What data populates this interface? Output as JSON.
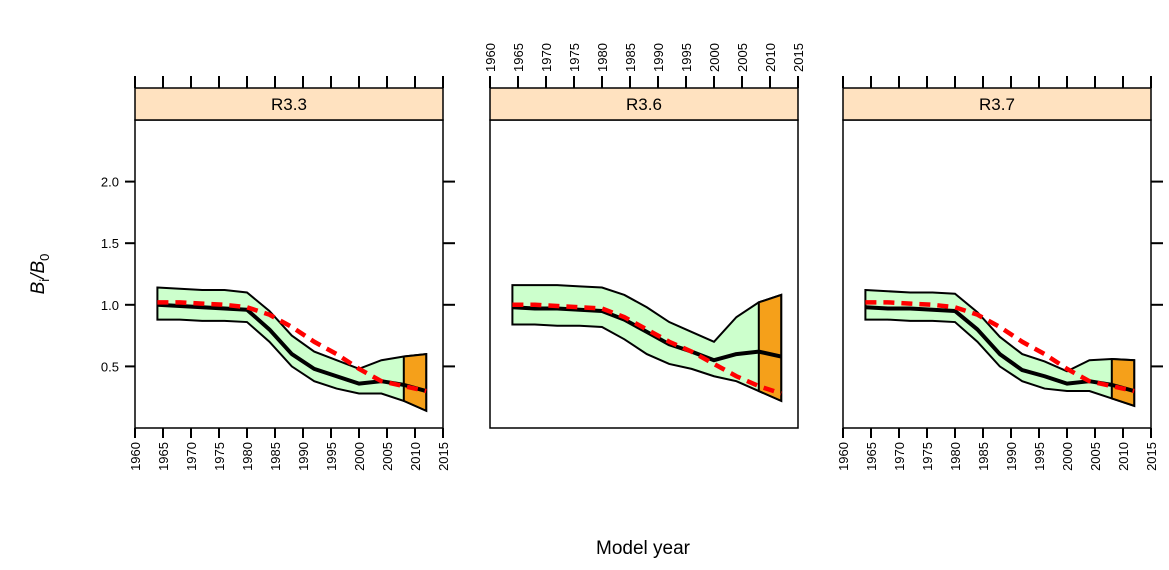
{
  "chart_data": [
    {
      "type": "line",
      "title": "R3.3",
      "x_axis_side": "bottom",
      "x": [
        1964,
        1968,
        1972,
        1976,
        1980,
        1984,
        1988,
        1992,
        1996,
        2000,
        2004,
        2008,
        2012
      ],
      "median": {
        "color": "#000000",
        "values": [
          1.0,
          0.99,
          0.98,
          0.97,
          0.96,
          0.8,
          0.6,
          0.48,
          0.42,
          0.36,
          0.38,
          0.35,
          0.3
        ]
      },
      "interval": {
        "color": "#ccffcc",
        "upper": [
          1.14,
          1.13,
          1.12,
          1.12,
          1.1,
          0.95,
          0.75,
          0.62,
          0.55,
          0.48,
          0.55,
          0.58,
          0.6
        ],
        "lower": [
          0.88,
          0.88,
          0.87,
          0.87,
          0.86,
          0.7,
          0.5,
          0.38,
          0.32,
          0.28,
          0.28,
          0.22,
          0.14
        ]
      },
      "reference": {
        "color": "#ff0000",
        "values": [
          1.02,
          1.02,
          1.01,
          1.0,
          0.98,
          0.92,
          0.82,
          0.7,
          0.6,
          0.48,
          0.38,
          0.34,
          0.3
        ]
      },
      "highlight_from": 2008,
      "highlight_color": "#f5a01a",
      "xlim": [
        1960,
        2015
      ],
      "ylim": [
        0,
        2.5
      ],
      "xticks": [
        1960,
        1965,
        1970,
        1975,
        1980,
        1985,
        1990,
        1995,
        2000,
        2005,
        2010,
        2015
      ],
      "yticks": [
        0.5,
        {
          "value": 1,
          "label": "1.0"
        },
        1.5,
        {
          "value": 2,
          "label": "2.0"
        }
      ],
      "ylabel": [
        {
          "text": "B"
        },
        {
          "text": "i",
          "sub": true
        },
        {
          "text": "/"
        },
        {
          "text": "B"
        },
        {
          "text": "0",
          "sub": true
        }
      ],
      "xlabel": "Model year"
    },
    {
      "type": "line",
      "title": "R3.6",
      "x_axis_side": "top",
      "x": [
        1964,
        1968,
        1972,
        1976,
        1980,
        1984,
        1988,
        1992,
        1996,
        2000,
        2004,
        2008,
        2012
      ],
      "median": {
        "color": "#000000",
        "values": [
          0.98,
          0.97,
          0.97,
          0.96,
          0.95,
          0.88,
          0.78,
          0.68,
          0.62,
          0.55,
          0.6,
          0.62,
          0.58
        ]
      },
      "interval": {
        "color": "#ccffcc",
        "upper": [
          1.16,
          1.16,
          1.16,
          1.15,
          1.14,
          1.08,
          0.98,
          0.86,
          0.78,
          0.7,
          0.9,
          1.02,
          1.08
        ],
        "lower": [
          0.84,
          0.84,
          0.83,
          0.83,
          0.82,
          0.72,
          0.6,
          0.52,
          0.48,
          0.42,
          0.38,
          0.3,
          0.22
        ]
      },
      "reference": {
        "color": "#ff0000",
        "values": [
          1.0,
          1.0,
          0.99,
          0.98,
          0.97,
          0.9,
          0.8,
          0.7,
          0.62,
          0.52,
          0.42,
          0.34,
          0.28
        ]
      },
      "highlight_from": 2008,
      "highlight_color": "#f5a01a",
      "xlim": [
        1960,
        2015
      ],
      "ylim": [
        0,
        2.5
      ],
      "xticks": [
        1960,
        1965,
        1970,
        1975,
        1980,
        1985,
        1990,
        1995,
        2000,
        2005,
        2010,
        2015
      ]
    },
    {
      "type": "line",
      "title": "R3.7",
      "x_axis_side": "bottom",
      "x": [
        1964,
        1968,
        1972,
        1976,
        1980,
        1984,
        1988,
        1992,
        1996,
        2000,
        2004,
        2008,
        2012
      ],
      "median": {
        "color": "#000000",
        "values": [
          0.98,
          0.97,
          0.97,
          0.96,
          0.95,
          0.8,
          0.6,
          0.47,
          0.42,
          0.36,
          0.38,
          0.35,
          0.3
        ]
      },
      "interval": {
        "color": "#ccffcc",
        "upper": [
          1.12,
          1.11,
          1.1,
          1.1,
          1.09,
          0.94,
          0.74,
          0.6,
          0.54,
          0.46,
          0.55,
          0.56,
          0.55
        ],
        "lower": [
          0.88,
          0.88,
          0.87,
          0.87,
          0.86,
          0.7,
          0.5,
          0.38,
          0.32,
          0.3,
          0.3,
          0.24,
          0.18
        ]
      },
      "reference": {
        "color": "#ff0000",
        "values": [
          1.02,
          1.02,
          1.01,
          1.0,
          0.98,
          0.92,
          0.82,
          0.7,
          0.6,
          0.48,
          0.38,
          0.34,
          0.3
        ]
      },
      "highlight_from": 2008,
      "highlight_color": "#f5a01a",
      "xlim": [
        1960,
        2015
      ],
      "ylim": [
        0,
        2.5
      ],
      "xticks": [
        1960,
        1965,
        1970,
        1975,
        1980,
        1985,
        1990,
        1995,
        2000,
        2005,
        2010,
        2015
      ]
    }
  ]
}
